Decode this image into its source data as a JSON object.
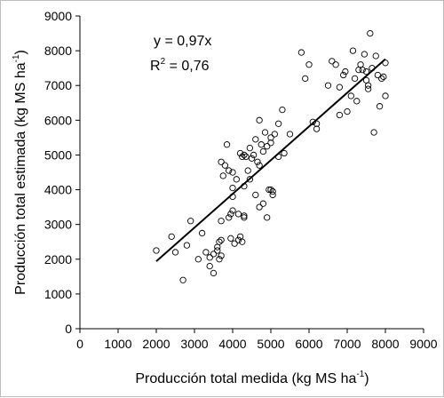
{
  "chart_data": {
    "type": "scatter",
    "title": "",
    "xlabel": "Producción total medida (kg MS ha",
    "xlabel_exponent": "-1",
    "xlabel_close": ")",
    "ylabel": "Producción total estimada (kg MS ha",
    "ylabel_exponent": "-1",
    "ylabel_close": ")",
    "xlim": [
      0,
      9000
    ],
    "ylim": [
      0,
      9000
    ],
    "x_ticks": [
      0,
      1000,
      2000,
      3000,
      4000,
      5000,
      6000,
      7000,
      8000,
      9000
    ],
    "y_ticks": [
      0,
      1000,
      2000,
      3000,
      4000,
      5000,
      6000,
      7000,
      8000,
      9000
    ],
    "grid": false,
    "legend": "none",
    "annotations": {
      "equation": "y = 0,97x",
      "r2_prefix": "R",
      "r2_exponent": "2",
      "r2_value": " = 0,76"
    },
    "fit_line": {
      "slope": 0.97,
      "x_range": [
        2000,
        8000
      ]
    },
    "series": [
      {
        "marker": "open-circle",
        "points": [
          [
            2000,
            2250
          ],
          [
            2400,
            2650
          ],
          [
            2700,
            1400
          ],
          [
            2500,
            2200
          ],
          [
            2800,
            2400
          ],
          [
            2900,
            3100
          ],
          [
            3100,
            2000
          ],
          [
            3200,
            2750
          ],
          [
            3300,
            2200
          ],
          [
            3400,
            2050
          ],
          [
            3400,
            1800
          ],
          [
            3500,
            1600
          ],
          [
            3500,
            2150
          ],
          [
            3600,
            2350
          ],
          [
            3600,
            2250
          ],
          [
            3650,
            2000
          ],
          [
            3700,
            2100
          ],
          [
            3650,
            2500
          ],
          [
            3700,
            2550
          ],
          [
            3700,
            3100
          ],
          [
            3700,
            4800
          ],
          [
            3750,
            4400
          ],
          [
            3800,
            4700
          ],
          [
            3850,
            5300
          ],
          [
            3900,
            4550
          ],
          [
            3900,
            3200
          ],
          [
            3950,
            2600
          ],
          [
            3950,
            3300
          ],
          [
            4000,
            3400
          ],
          [
            4000,
            3800
          ],
          [
            4000,
            4050
          ],
          [
            4000,
            4500
          ],
          [
            4050,
            2450
          ],
          [
            4100,
            4300
          ],
          [
            4150,
            3300
          ],
          [
            4150,
            2550
          ],
          [
            4200,
            2650
          ],
          [
            4200,
            5050
          ],
          [
            4250,
            2500
          ],
          [
            4250,
            4950
          ],
          [
            4300,
            3200
          ],
          [
            4300,
            3250
          ],
          [
            4300,
            4100
          ],
          [
            4300,
            5000
          ],
          [
            4350,
            4950
          ],
          [
            4400,
            4550
          ],
          [
            4450,
            4300
          ],
          [
            4450,
            5200
          ],
          [
            4500,
            4900
          ],
          [
            4550,
            5000
          ],
          [
            4600,
            3850
          ],
          [
            4600,
            5450
          ],
          [
            4650,
            4800
          ],
          [
            4700,
            6000
          ],
          [
            4700,
            4700
          ],
          [
            4700,
            3500
          ],
          [
            4750,
            5300
          ],
          [
            4800,
            3600
          ],
          [
            4800,
            5100
          ],
          [
            4850,
            5650
          ],
          [
            4900,
            3200
          ],
          [
            4900,
            5250
          ],
          [
            4950,
            4000
          ],
          [
            5000,
            4000
          ],
          [
            5000,
            5350
          ],
          [
            5000,
            5500
          ],
          [
            5050,
            3850
          ],
          [
            5050,
            3950
          ],
          [
            5100,
            5600
          ],
          [
            5200,
            5900
          ],
          [
            5200,
            4950
          ],
          [
            5300,
            6300
          ],
          [
            5350,
            5050
          ],
          [
            5500,
            5600
          ],
          [
            5800,
            7950
          ],
          [
            5900,
            7200
          ],
          [
            6000,
            7600
          ],
          [
            6100,
            5950
          ],
          [
            6200,
            5900
          ],
          [
            6200,
            5750
          ],
          [
            6500,
            7000
          ],
          [
            6600,
            7700
          ],
          [
            6700,
            7600
          ],
          [
            6800,
            6950
          ],
          [
            6800,
            6150
          ],
          [
            6900,
            7300
          ],
          [
            6950,
            7400
          ],
          [
            7000,
            6250
          ],
          [
            7100,
            6700
          ],
          [
            7150,
            8000
          ],
          [
            7200,
            7200
          ],
          [
            7250,
            6550
          ],
          [
            7300,
            7450
          ],
          [
            7350,
            7600
          ],
          [
            7400,
            7450
          ],
          [
            7450,
            7900
          ],
          [
            7500,
            7150
          ],
          [
            7500,
            7400
          ],
          [
            7550,
            7000
          ],
          [
            7550,
            6900
          ],
          [
            7600,
            8500
          ],
          [
            7650,
            7500
          ],
          [
            7700,
            5650
          ],
          [
            7750,
            7850
          ],
          [
            7800,
            7300
          ],
          [
            7850,
            6400
          ],
          [
            7900,
            7200
          ],
          [
            7950,
            7250
          ],
          [
            8000,
            6700
          ],
          [
            8000,
            7650
          ]
        ]
      }
    ]
  }
}
